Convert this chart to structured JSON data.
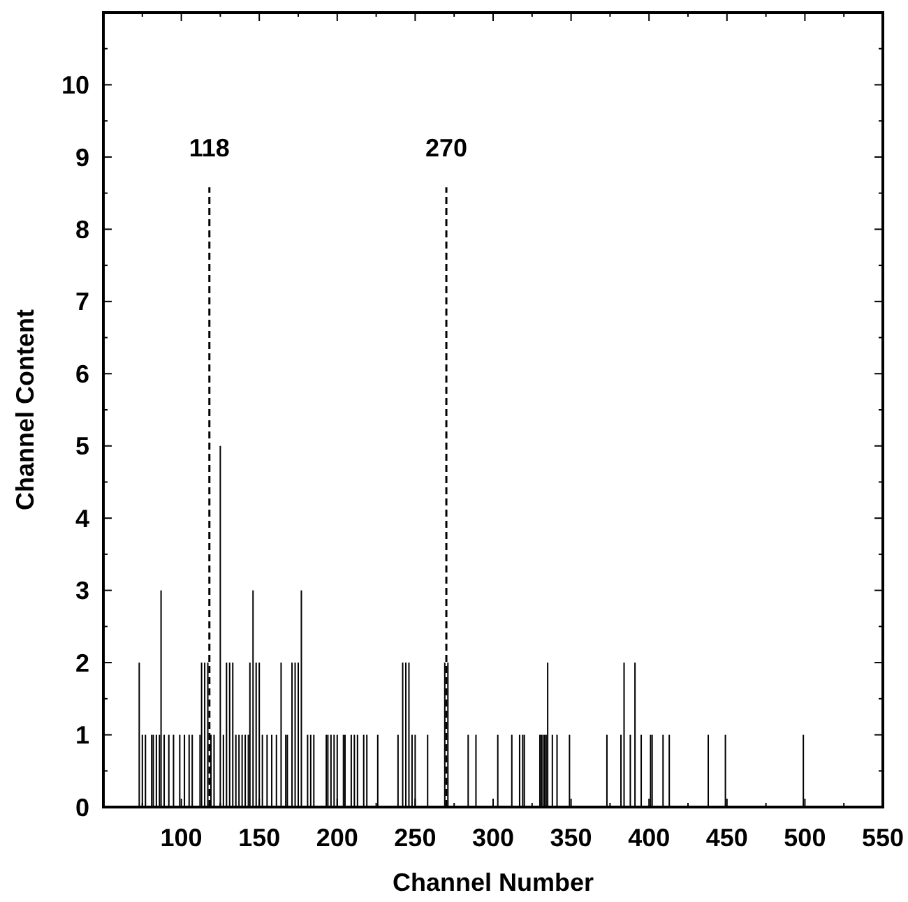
{
  "chart_data": {
    "type": "bar",
    "xlabel": "Channel Number",
    "ylabel": "Channel Content",
    "x": [
      73,
      75,
      77,
      81,
      82,
      84,
      86,
      87,
      89,
      92,
      95,
      99,
      102,
      105,
      107,
      112,
      113,
      115,
      117,
      119,
      121,
      125,
      127,
      129,
      131,
      133,
      135,
      137,
      139,
      141,
      143,
      144,
      146,
      148,
      150,
      152,
      155,
      158,
      161,
      164,
      167,
      168,
      171,
      173,
      175,
      177,
      181,
      183,
      185,
      193,
      194,
      196,
      198,
      200,
      204,
      205,
      209,
      211,
      213,
      217,
      219,
      226,
      239,
      242,
      244,
      246,
      248,
      250,
      258,
      269,
      271,
      284,
      289,
      303,
      312,
      317,
      319,
      320,
      330,
      331,
      332,
      333,
      334,
      335,
      338,
      341,
      349,
      373,
      382,
      384,
      388,
      391,
      395,
      401,
      402,
      409,
      413,
      438,
      449,
      499
    ],
    "values": [
      2,
      1,
      1,
      1,
      1,
      1,
      1,
      3,
      1,
      1,
      1,
      1,
      1,
      1,
      1,
      1,
      2,
      2,
      2,
      1,
      1,
      5,
      1,
      2,
      2,
      2,
      1,
      1,
      1,
      1,
      1,
      2,
      3,
      2,
      2,
      1,
      1,
      1,
      1,
      2,
      1,
      1,
      2,
      2,
      2,
      3,
      1,
      1,
      1,
      1,
      1,
      1,
      1,
      1,
      1,
      1,
      1,
      1,
      1,
      1,
      1,
      1,
      1,
      2,
      2,
      2,
      1,
      1,
      1,
      2,
      2,
      1,
      1,
      1,
      1,
      1,
      1,
      1,
      1,
      1,
      1,
      1,
      1,
      2,
      1,
      1,
      1,
      1,
      1,
      2,
      1,
      2,
      1,
      1,
      1,
      1,
      1,
      1,
      1,
      1
    ],
    "color": "#000000",
    "xlim": [
      50,
      550
    ],
    "xticks": [
      100,
      150,
      200,
      250,
      300,
      350,
      400,
      450,
      500,
      550
    ],
    "ylim": [
      0,
      11
    ],
    "yticks": [
      0,
      1,
      2,
      3,
      4,
      5,
      6,
      7,
      8,
      9,
      10
    ],
    "ref_lines": [
      {
        "axis": "x",
        "value": 118,
        "label": "118",
        "line_style": "dashed",
        "color": "#000000"
      },
      {
        "axis": "x",
        "value": 270,
        "label": "270",
        "line_style": "dashed",
        "color": "#000000"
      }
    ]
  }
}
